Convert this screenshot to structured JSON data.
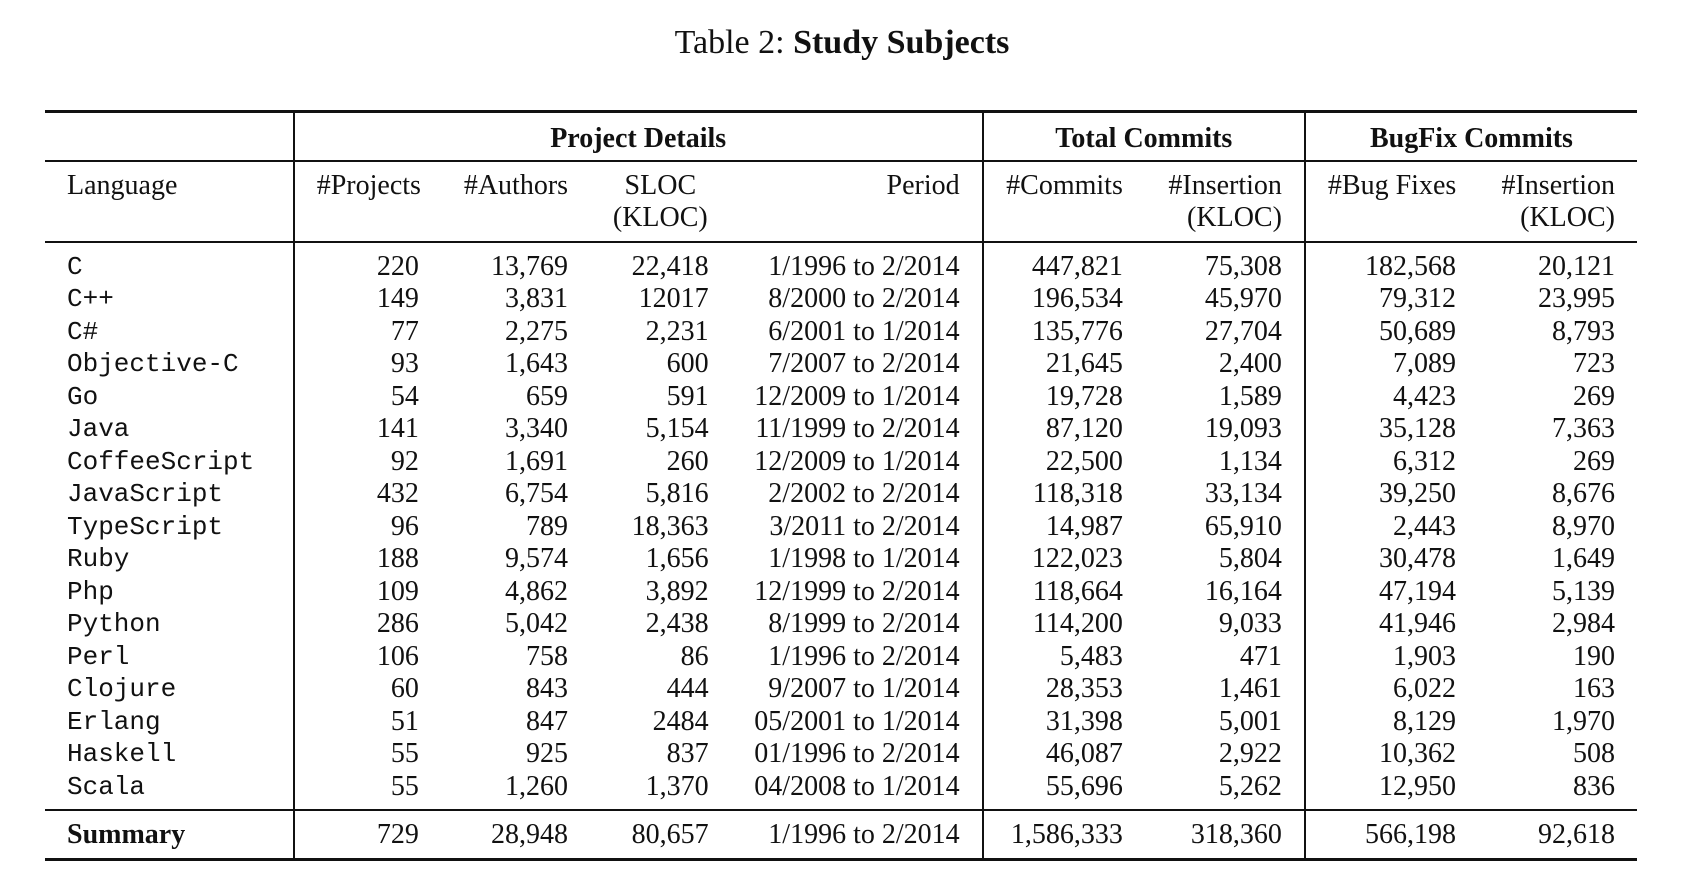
{
  "caption": {
    "prefix": "Table 2:",
    "title": "Study Subjects"
  },
  "groups": {
    "project_details": "Project Details",
    "total_commits": "Total Commits",
    "bugfix_commits": "BugFix Commits"
  },
  "headers": {
    "language": "Language",
    "projects": "#Projects",
    "authors": "#Authors",
    "sloc": "SLOC",
    "sloc_unit": "(KLOC)",
    "period": "Period",
    "commits": "#Commits",
    "insertion": "#Insertion",
    "insertion_unit": "(KLOC)",
    "bug_fixes": "#Bug Fixes",
    "bug_insertion": "#Insertion",
    "bug_insertion_unit": "(KLOC)"
  },
  "rows": [
    [
      "C",
      "220",
      "13,769",
      "22,418",
      "1/1996 to 2/2014",
      "447,821",
      "75,308",
      "182,568",
      "20,121"
    ],
    [
      "C++",
      "149",
      "3,831",
      "12017",
      "8/2000 to 2/2014",
      "196,534",
      "45,970",
      "79,312",
      "23,995"
    ],
    [
      "C#",
      "77",
      "2,275",
      "2,231",
      "6/2001 to 1/2014",
      "135,776",
      "27,704",
      "50,689",
      "8,793"
    ],
    [
      "Objective-C",
      "93",
      "1,643",
      "600",
      "7/2007 to 2/2014",
      "21,645",
      "2,400",
      "7,089",
      "723"
    ],
    [
      "Go",
      "54",
      "659",
      "591",
      "12/2009 to 1/2014",
      "19,728",
      "1,589",
      "4,423",
      "269"
    ],
    [
      "Java",
      "141",
      "3,340",
      "5,154",
      "11/1999 to 2/2014",
      "87,120",
      "19,093",
      "35,128",
      "7,363"
    ],
    [
      "CoffeeScript",
      "92",
      "1,691",
      "260",
      "12/2009 to 1/2014",
      "22,500",
      "1,134",
      "6,312",
      "269"
    ],
    [
      "JavaScript",
      "432",
      "6,754",
      "5,816",
      "2/2002 to 2/2014",
      "118,318",
      "33,134",
      "39,250",
      "8,676"
    ],
    [
      "TypeScript",
      "96",
      "789",
      "18,363",
      "3/2011 to 2/2014",
      "14,987",
      "65,910",
      "2,443",
      "8,970"
    ],
    [
      "Ruby",
      "188",
      "9,574",
      "1,656",
      "1/1998 to 1/2014",
      "122,023",
      "5,804",
      "30,478",
      "1,649"
    ],
    [
      "Php",
      "109",
      "4,862",
      "3,892",
      "12/1999 to 2/2014",
      "118,664",
      "16,164",
      "47,194",
      "5,139"
    ],
    [
      "Python",
      "286",
      "5,042",
      "2,438",
      "8/1999 to 2/2014",
      "114,200",
      "9,033",
      "41,946",
      "2,984"
    ],
    [
      "Perl",
      "106",
      "758",
      "86",
      "1/1996 to 2/2014",
      "5,483",
      "471",
      "1,903",
      "190"
    ],
    [
      "Clojure",
      "60",
      "843",
      "444",
      "9/2007 to 1/2014",
      "28,353",
      "1,461",
      "6,022",
      "163"
    ],
    [
      "Erlang",
      "51",
      "847",
      "2484",
      "05/2001 to 1/2014",
      "31,398",
      "5,001",
      "8,129",
      "1,970"
    ],
    [
      "Haskell",
      "55",
      "925",
      "837",
      "01/1996 to 2/2014",
      "46,087",
      "2,922",
      "10,362",
      "508"
    ],
    [
      "Scala",
      "55",
      "1,260",
      "1,370",
      "04/2008 to 1/2014",
      "55,696",
      "5,262",
      "12,950",
      "836"
    ]
  ],
  "summary": [
    "Summary",
    "729",
    "28,948",
    "80,657",
    "1/1996 to 2/2014",
    "1,586,333",
    "318,360",
    "566,198",
    "92,618"
  ]
}
